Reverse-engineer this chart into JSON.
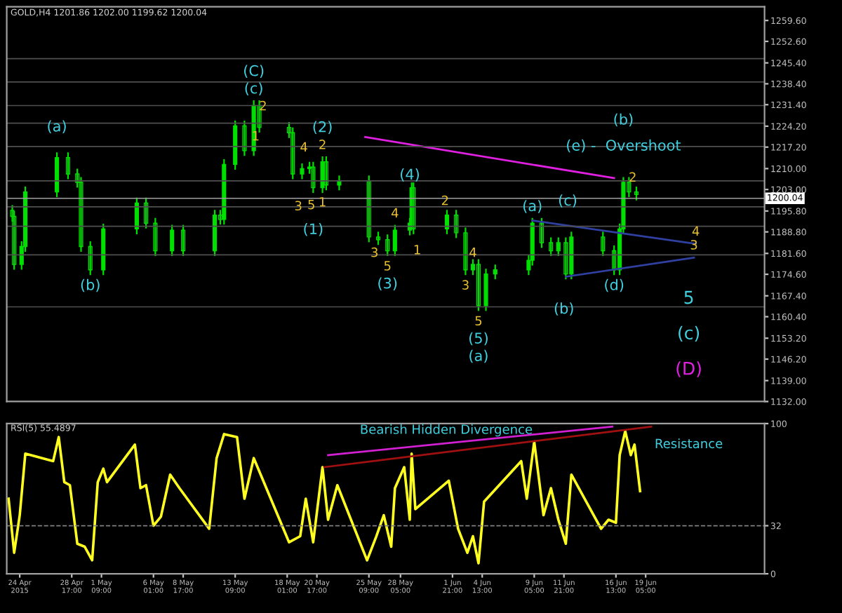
{
  "chart_data": [
    {
      "type": "candlestick",
      "title": "GOLD,H4 1201.86 1202.00 1199.62 1200.04",
      "color": "#00e000",
      "x": [
        "2015-04-23T09:00",
        "2015-04-23T13:00",
        "2015-04-24T05:00",
        "2015-04-24T13:00",
        "2015-04-27T09:00",
        "2015-04-28T09:00",
        "2015-04-29T05:00",
        "2015-04-29T13:00",
        "2015-04-30T09:00",
        "2015-05-01T13:00",
        "2015-05-04T13:00",
        "2015-05-05T09:00",
        "2015-05-06T05:00",
        "2015-05-07T17:00",
        "2015-05-08T17:00",
        "2015-05-11T13:00",
        "2015-05-12T01:00",
        "2015-05-12T09:00",
        "2015-05-13T09:00",
        "2015-05-14T05:00",
        "2015-05-15T01:00",
        "2015-05-15T13:00",
        "2015-05-18T05:00",
        "2015-05-18T13:00",
        "2015-05-19T09:00",
        "2015-05-20T01:00",
        "2015-05-20T09:00",
        "2015-05-21T05:00",
        "2015-05-21T13:00",
        "2015-05-22T17:00",
        "2015-05-25T09:00",
        "2015-05-26T05:00",
        "2015-05-27T01:00",
        "2015-05-27T17:00",
        "2015-05-29T01:00",
        "2015-05-29T05:00",
        "2015-05-29T09:00",
        "2015-06-01T09:00",
        "2015-06-02T05:00",
        "2015-06-03T01:00",
        "2015-06-03T17:00",
        "2015-06-04T05:00",
        "2015-06-04T21:00",
        "2015-06-05T17:00",
        "2015-06-08T17:00",
        "2015-06-09T01:00",
        "2015-06-09T21:00",
        "2015-06-10T17:00",
        "2015-06-11T09:00",
        "2015-06-12T01:00",
        "2015-06-12T13:00",
        "2015-06-15T09:00",
        "2015-06-16T09:00",
        "2015-06-16T21:00",
        "2015-06-17T05:00",
        "2015-06-17T17:00",
        "2015-06-18T09:00"
      ],
      "ohlc": [
        [
          1196,
          1197.5,
          1192.5,
          1194.0
        ],
        [
          1194.0,
          1195.5,
          1176.4,
          1177.9
        ],
        [
          1177.9,
          1185.4,
          1176.4,
          1183.9
        ],
        [
          1183.9,
          1203.7,
          1182.4,
          1202.2
        ],
        [
          1202.2,
          1215.2,
          1200.7,
          1213.7
        ],
        [
          1213.7,
          1215.2,
          1206.7,
          1208.2
        ],
        [
          1208.2,
          1209.7,
          1203.9,
          1205.4
        ],
        [
          1205.4,
          1206.9,
          1182.4,
          1183.9
        ],
        [
          1183.9,
          1185.4,
          1174.6,
          1176.1
        ],
        [
          1176.1,
          1191.3,
          1174.6,
          1189.8
        ],
        [
          1189.8,
          1200.0,
          1188.3,
          1198.5
        ],
        [
          1198.5,
          1200.0,
          1190.2,
          1191.7
        ],
        [
          1191.7,
          1193.2,
          1181.0,
          1182.5
        ],
        [
          1182.5,
          1190.9,
          1181.0,
          1189.4
        ],
        [
          1189.4,
          1190.9,
          1181.0,
          1182.5
        ],
        [
          1182.5,
          1195.9,
          1181.0,
          1194.4
        ],
        [
          1194.4,
          1195.9,
          1191.5,
          1193.0
        ],
        [
          1193.0,
          1212.9,
          1191.5,
          1211.4
        ],
        [
          1211.4,
          1225.8,
          1209.9,
          1224.3
        ],
        [
          1224.3,
          1225.8,
          1214.5,
          1216.0
        ],
        [
          1216.0,
          1232.6,
          1214.5,
          1231.1
        ],
        [
          1231.1,
          1232.6,
          1222.3,
          1223.8
        ],
        [
          1223.8,
          1225.3,
          1220.5,
          1222.0
        ],
        [
          1222.0,
          1223.5,
          1206.7,
          1208.2
        ],
        [
          1208.2,
          1211.5,
          1206.7,
          1210.0
        ],
        [
          1210.0,
          1212.0,
          1208.5,
          1210.5
        ],
        [
          1210.5,
          1212.0,
          1202.1,
          1203.6
        ],
        [
          1203.6,
          1213.8,
          1202.1,
          1212.3
        ],
        [
          1212.3,
          1213.8,
          1203.0,
          1204.5
        ],
        [
          1204.5,
          1207.4,
          1203.0,
          1205.9
        ],
        [
          1205.9,
          1207.4,
          1185.6,
          1187.1
        ],
        [
          1187.1,
          1188.6,
          1184.7,
          1186.2
        ],
        [
          1186.2,
          1187.7,
          1181.0,
          1182.5
        ],
        [
          1182.5,
          1190.9,
          1181.0,
          1189.4
        ],
        [
          1189.4,
          1193.2,
          1187.9,
          1191.7
        ],
        [
          1191.7,
          1205.1,
          1190.2,
          1203.6
        ],
        [
          1203.6,
          1205.1,
          1188.3,
          1189.8
        ],
        [
          1189.8,
          1195.9,
          1188.3,
          1194.4
        ],
        [
          1194.4,
          1195.9,
          1187.0,
          1188.5
        ],
        [
          1188.5,
          1190.0,
          1174.6,
          1176.1
        ],
        [
          1176.1,
          1179.4,
          1174.6,
          1177.9
        ],
        [
          1177.9,
          1179.4,
          1162.6,
          1164.1
        ],
        [
          1164.1,
          1176.2,
          1162.6,
          1174.7
        ],
        [
          1174.7,
          1177.6,
          1173.2,
          1176.1
        ],
        [
          1176.1,
          1180.8,
          1174.6,
          1179.3
        ],
        [
          1179.3,
          1193.2,
          1177.8,
          1191.7
        ],
        [
          1191.7,
          1193.2,
          1183.7,
          1185.2
        ],
        [
          1185.2,
          1186.7,
          1181.0,
          1182.5
        ],
        [
          1182.5,
          1186.7,
          1181.0,
          1185.2
        ],
        [
          1185.2,
          1186.7,
          1173.2,
          1174.7
        ],
        [
          1174.7,
          1188.6,
          1173.2,
          1187.1
        ],
        [
          1187.1,
          1188.6,
          1181.0,
          1182.5
        ],
        [
          1182.5,
          1184.0,
          1174.6,
          1176.1
        ],
        [
          1176.1,
          1191.3,
          1174.6,
          1189.8
        ],
        [
          1189.8,
          1206.9,
          1188.3,
          1205.4
        ],
        [
          1205.4,
          1206.9,
          1200.7,
          1202.2
        ],
        [
          1202.2,
          1203.7,
          1199.6,
          1201.3
        ]
      ],
      "series": [
        {
          "type": "line",
          "x": [
            "2015-05-25T01:00",
            "2015-06-16T09:00"
          ],
          "values": [
            1220.6,
            1206.8
          ],
          "color": "#e020e0"
        },
        {
          "type": "line",
          "x": [
            "2015-06-09T01:00",
            "2015-06-23T17:00"
          ],
          "values": [
            1192.6,
            1184.8
          ],
          "color": "#3040a0"
        },
        {
          "type": "line",
          "x": [
            "2015-06-12T01:00",
            "2015-06-23T13:00"
          ],
          "values": [
            1173.8,
            1180.2
          ],
          "color": "#3040a0"
        }
      ],
      "xlim": [
        "2015-04-22T21:00",
        "2015-06-29T21:00"
      ],
      "ylim": [
        1132,
        1264.2
      ],
      "yticks": [
        {
          "value": 1259.6,
          "label": "1259.60"
        },
        {
          "value": 1252.6,
          "label": "1252.60"
        },
        {
          "value": 1245.4,
          "label": "1245.40"
        },
        {
          "value": 1238.4,
          "label": "1238.40"
        },
        {
          "value": 1231.4,
          "label": "1231.40"
        },
        {
          "value": 1224.2,
          "label": "1224.20"
        },
        {
          "value": 1217.2,
          "label": "1217.20"
        },
        {
          "value": 1210,
          "label": "1210.00"
        },
        {
          "value": 1203,
          "label": "1203.00"
        },
        {
          "value": 1195.8,
          "label": "1195.80"
        },
        {
          "value": 1188.8,
          "label": "1188.80"
        },
        {
          "value": 1181.6,
          "label": "1181.60"
        },
        {
          "value": 1174.6,
          "label": "1174.60"
        },
        {
          "value": 1167.4,
          "label": "1167.40"
        },
        {
          "value": 1160.4,
          "label": "1160.40"
        },
        {
          "value": 1153.2,
          "label": "1153.20"
        },
        {
          "value": 1146.2,
          "label": "1146.20"
        },
        {
          "value": 1139,
          "label": "1139.00"
        },
        {
          "value": 1132,
          "label": "1132.00"
        }
      ],
      "tick_labels": "y",
      "ref_lines": [
        {
          "axis": "y",
          "value": 1200.04,
          "label": "1200.04",
          "color": "#a0a0a0"
        },
        {
          "axis": "y",
          "value": 1246.8,
          "label": null,
          "color": "#505050"
        },
        {
          "axis": "y",
          "value": 1239.0,
          "label": null,
          "color": "#505050"
        },
        {
          "axis": "y",
          "value": 1231.1,
          "label": null,
          "color": "#505050"
        },
        {
          "axis": "y",
          "value": 1225.2,
          "label": null,
          "color": "#505050"
        },
        {
          "axis": "y",
          "value": 1217.4,
          "label": null,
          "color": "#505050"
        },
        {
          "axis": "y",
          "value": 1205.9,
          "label": null,
          "color": "#505050"
        },
        {
          "axis": "y",
          "value": 1197.2,
          "label": null,
          "color": "#505050"
        },
        {
          "axis": "y",
          "value": 1190.7,
          "label": null,
          "color": "#505050"
        },
        {
          "axis": "y",
          "value": 1181.1,
          "label": null,
          "color": "#505050"
        },
        {
          "axis": "y",
          "value": 1163.7,
          "label": null,
          "color": "#505050"
        }
      ],
      "annotations": [
        {
          "text": "(c)",
          "x": "2015-05-15T01:00",
          "y": 1232.6
        },
        {
          "text": "(C)",
          "x": "2015-05-15T01:00",
          "y": 1232.6
        },
        {
          "text": "(a)",
          "x": "2015-04-27T09:00",
          "y": 1223.8
        },
        {
          "text": "(b)",
          "x": "2015-04-30T09:00",
          "y": 1174.6
        },
        {
          "text": "(1)",
          "x": "2015-05-20T09:00",
          "y": 1189.4
        },
        {
          "text": "5",
          "x": "2015-05-27T01:00",
          "y": 1181.0
        },
        {
          "text": "(3)",
          "x": "2015-05-27T01:00",
          "y": 1181.0
        },
        {
          "text": "(4)",
          "x": "2015-05-29T01:00",
          "y": 1207.7
        },
        {
          "text": "5",
          "x": "2015-06-04T05:00",
          "y": 1162.6
        },
        {
          "text": "(5)",
          "x": "2015-06-04T05:00",
          "y": 1162.6
        },
        {
          "text": "(a)",
          "x": "2015-06-04T05:00",
          "y": 1162.6
        },
        {
          "text": "(a)",
          "x": "2015-06-09T01:00",
          "y": 1193.2
        },
        {
          "text": "(c)",
          "x": "2015-06-12T05:00",
          "y": 1199.0
        },
        {
          "text": "(b)",
          "x": "2015-06-11T21:00",
          "y": 1162.8
        },
        {
          "text": "(d)",
          "x": "2015-06-16T09:00",
          "y": 1174.6
        },
        {
          "text": "(b)",
          "x": "2015-06-17T05:00",
          "y": 1226.1
        },
        {
          "text": "(e) -  Overshoot",
          "x": "2015-06-17T05:00",
          "y": 1217.4
        },
        "(D)",
        "(c)",
        "5",
        {
          "text": "3",
          "x": "2015-06-23T13:00",
          "y": 1180.2
        },
        {
          "text": "4",
          "x": "2015-06-23T17:00",
          "y": 1184.8
        },
        {
          "text": "2",
          "x": "2015-06-18T01:00",
          "y": 1206.8
        },
        {
          "text": "2",
          "x": "2015-05-15T21:00",
          "y": 1230.7
        },
        {
          "text": "1",
          "x": "2015-05-15T05:00",
          "y": 1220.6
        },
        {
          "text": "3",
          "x": "2015-05-19T01:00",
          "y": 1197.2
        },
        {
          "text": "5",
          "x": "2015-05-20T05:00",
          "y": 1197.6
        },
        {
          "text": "1",
          "x": "2015-05-21T05:00",
          "y": 1198.5
        },
        {
          "text": "4",
          "x": "2015-05-19T13:00",
          "y": 1216.9
        },
        {
          "text": "2",
          "x": "2015-05-21T05:00",
          "y": 1213.8
        },
        {
          "text": "3",
          "x": "2015-05-25T21:00",
          "y": 1181.6
        },
        {
          "text": "4",
          "x": "2015-05-27T17:00",
          "y": 1190.9
        },
        {
          "text": "1",
          "x": "2015-05-29T17:00",
          "y": 1182.5
        },
        {
          "text": "2",
          "x": "2015-06-01T05:00",
          "y": 1199.0
        },
        {
          "text": "4",
          "x": "2015-06-03T17:00",
          "y": 1181.6
        },
        {
          "text": "3",
          "x": "2015-06-03T01:00",
          "y": 1174.6
        },
        {
          "text": "(2)",
          "x": "2015-05-21T05:00",
          "y": 1213.8
        }
      ]
    },
    {
      "type": "line",
      "title": "RSI(5) 55.4897",
      "series": [
        {
          "x": [
            "2015-04-23T01:00",
            "2015-04-23T13:00",
            "2015-04-24T01:00",
            "2015-04-24T13:00",
            "2015-04-27T01:00",
            "2015-04-27T13:00",
            "2015-04-28T01:00",
            "2015-04-28T13:00",
            "2015-04-29T05:00",
            "2015-04-29T21:00",
            "2015-04-30T13:00",
            "2015-05-01T01:00",
            "2015-05-01T13:00",
            "2015-05-01T21:00",
            "2015-05-04T09:00",
            "2015-05-04T21:00",
            "2015-05-05T09:00",
            "2015-05-06T01:00",
            "2015-05-06T17:00",
            "2015-05-07T13:00",
            "2015-05-08T09:00",
            "2015-05-11T01:00",
            "2015-05-11T17:00",
            "2015-05-12T09:00",
            "2015-05-13T13:00",
            "2015-05-14T05:00",
            "2015-05-15T01:00",
            "2015-05-18T05:00",
            "2015-05-19T05:00",
            "2015-05-19T17:00",
            "2015-05-20T09:00",
            "2015-05-21T05:00",
            "2015-05-21T17:00",
            "2015-05-22T13:00",
            "2015-05-25T05:00",
            "2015-05-26T01:00",
            "2015-05-26T17:00",
            "2015-05-27T09:00",
            "2015-05-27T17:00",
            "2015-05-28T13:00",
            "2015-05-29T01:00",
            "2015-05-29T05:00",
            "2015-05-29T13:00",
            "2015-06-01T13:00",
            "2015-06-02T09:00",
            "2015-06-03T05:00",
            "2015-06-03T17:00",
            "2015-06-04T05:00",
            "2015-06-04T17:00",
            "2015-06-08T01:00",
            "2015-06-08T13:00",
            "2015-06-09T05:00",
            "2015-06-10T01:00",
            "2015-06-10T17:00",
            "2015-06-11T09:00",
            "2015-06-12T01:00",
            "2015-06-12T13:00",
            "2015-06-15T05:00",
            "2015-06-15T21:00",
            "2015-06-16T13:00",
            "2015-06-16T21:00",
            "2015-06-17T09:00",
            "2015-06-17T21:00",
            "2015-06-18T05:00",
            "2015-06-18T17:00"
          ],
          "values": [
            50,
            14,
            39,
            80,
            75,
            91,
            61,
            59,
            20,
            18,
            9,
            61,
            70,
            61,
            86,
            57,
            59,
            32,
            38,
            66,
            57,
            30,
            77,
            93,
            91,
            50,
            77,
            21,
            25,
            50,
            21,
            71,
            36,
            59,
            9,
            25,
            39,
            18,
            57,
            71,
            36,
            80,
            43,
            62,
            30,
            14,
            25,
            7,
            48,
            75,
            50,
            88,
            39,
            57,
            36,
            20,
            66,
            30,
            36,
            34,
            79,
            95,
            79,
            86,
            55
          ],
          "color": "#ffff20"
        },
        {
          "x": [
            "2015-05-21T17:00",
            "2015-06-16T05:00"
          ],
          "values": [
            79,
            98
          ],
          "color": "#d020d0"
        },
        {
          "x": [
            "2015-05-21T09:00",
            "2015-06-19T17:00"
          ],
          "values": [
            71,
            98
          ],
          "color": "#a01010"
        }
      ],
      "xlim": [
        "2015-04-22T21:00",
        "2015-06-29T21:00"
      ],
      "ylim": [
        0,
        100
      ],
      "yticks": [
        0,
        32,
        100
      ],
      "xticks": [
        {
          "value": "2015-04-24T01:00",
          "label": "24 Apr 2015"
        },
        {
          "value": "2015-04-28T17:00",
          "label": "28 Apr 17:00"
        },
        {
          "value": "2015-05-01T09:00",
          "label": "1 May 09:00"
        },
        {
          "value": "2015-05-06T01:00",
          "label": "6 May 01:00"
        },
        {
          "value": "2015-05-08T17:00",
          "label": "8 May 17:00"
        },
        {
          "value": "2015-05-13T09:00",
          "label": "13 May 09:00"
        },
        {
          "value": "2015-05-18T01:00",
          "label": "18 May 01:00"
        },
        {
          "value": "2015-05-20T17:00",
          "label": "20 May 17:00"
        },
        {
          "value": "2015-05-25T09:00",
          "label": "25 May 09:00"
        },
        {
          "value": "2015-05-28T05:00",
          "label": "28 May 05:00"
        },
        {
          "value": "2015-06-01T21:00",
          "label": "1 Jun 21:00"
        },
        {
          "value": "2015-06-04T13:00",
          "label": "4 Jun 13:00"
        },
        {
          "value": "2015-06-09T05:00",
          "label": "9 Jun 05:00"
        },
        {
          "value": "2015-06-11T21:00",
          "label": "11 Jun 21:00"
        },
        {
          "value": "2015-06-16T13:00",
          "label": "16 Jun 13:00"
        },
        {
          "value": "2015-06-19T05:00",
          "label": "19 Jun 05:00"
        }
      ],
      "ref_lines": [
        {
          "axis": "y",
          "value": 32,
          "label": null,
          "color": "#808080",
          "line_style": "dashed"
        }
      ],
      "annotations": [
        "Bearish Hidden Divergence",
        "Resistance"
      ]
    }
  ]
}
